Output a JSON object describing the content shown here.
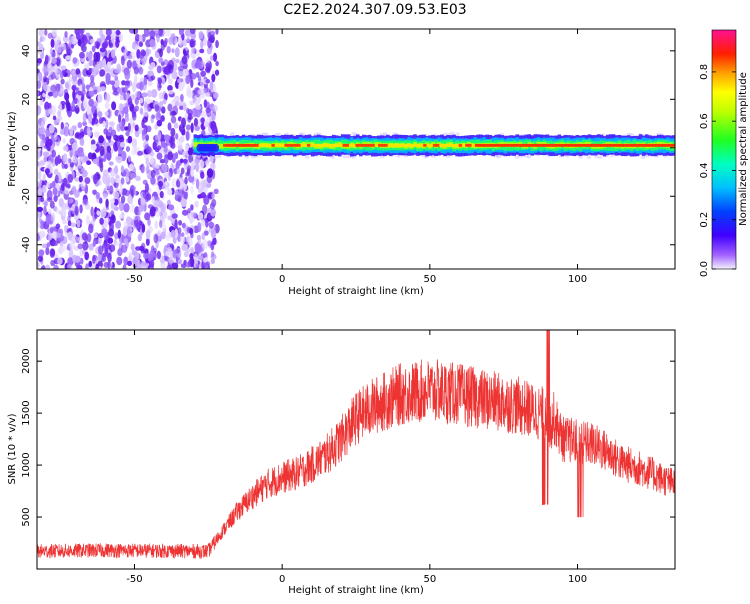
{
  "title": "C2E2.2024.307.09.53.E03",
  "chart_data": [
    {
      "type": "heatmap",
      "xlabel": "Height of straight line (km)",
      "ylabel": "Frequency (Hz)",
      "xlim": [
        -83,
        133
      ],
      "ylim": [
        -50,
        49
      ],
      "xticks": [
        -50,
        0,
        50,
        100
      ],
      "yticks": [
        -40,
        -20,
        0,
        20,
        40
      ],
      "colorbar": {
        "label": "Normalized spectral amplitude",
        "range": [
          0,
          0.97
        ],
        "ticks": [
          0.0,
          0.2,
          0.4,
          0.6,
          0.8
        ]
      },
      "features": {
        "broadband_noise_x_range": [
          -83,
          -22
        ],
        "signal_band_x_range": [
          -30,
          133
        ],
        "signal_center_freq_hz": [
          0,
          2
        ],
        "signal_peak_freq_hz": 1,
        "band_half_width_hz": [
          2,
          4
        ]
      }
    },
    {
      "type": "line",
      "xlabel": "Height of straight line (km)",
      "ylabel": "SNR (10 * v/v)",
      "xlim": [
        -83,
        133
      ],
      "ylim": [
        0,
        2300
      ],
      "xticks": [
        -50,
        0,
        50,
        100
      ],
      "yticks": [
        500,
        1000,
        1500,
        2000
      ],
      "series": [
        {
          "color": "#ee3333",
          "x": [
            -83,
            -60,
            -40,
            -25,
            -20,
            -15,
            -10,
            -5,
            0,
            5,
            10,
            15,
            20,
            25,
            30,
            35,
            40,
            45,
            50,
            55,
            60,
            65,
            70,
            75,
            80,
            85,
            88,
            90,
            92,
            95,
            100,
            105,
            110,
            115,
            120,
            125,
            130,
            133
          ],
          "y": [
            170,
            180,
            175,
            170,
            370,
            560,
            700,
            820,
            880,
            920,
            1000,
            1100,
            1250,
            1450,
            1550,
            1620,
            1680,
            1700,
            1720,
            1700,
            1680,
            1650,
            1620,
            1600,
            1570,
            1520,
            1500,
            1350,
            1450,
            1250,
            1230,
            1200,
            1130,
            1020,
            980,
            920,
            850,
            820
          ]
        }
      ]
    }
  ]
}
